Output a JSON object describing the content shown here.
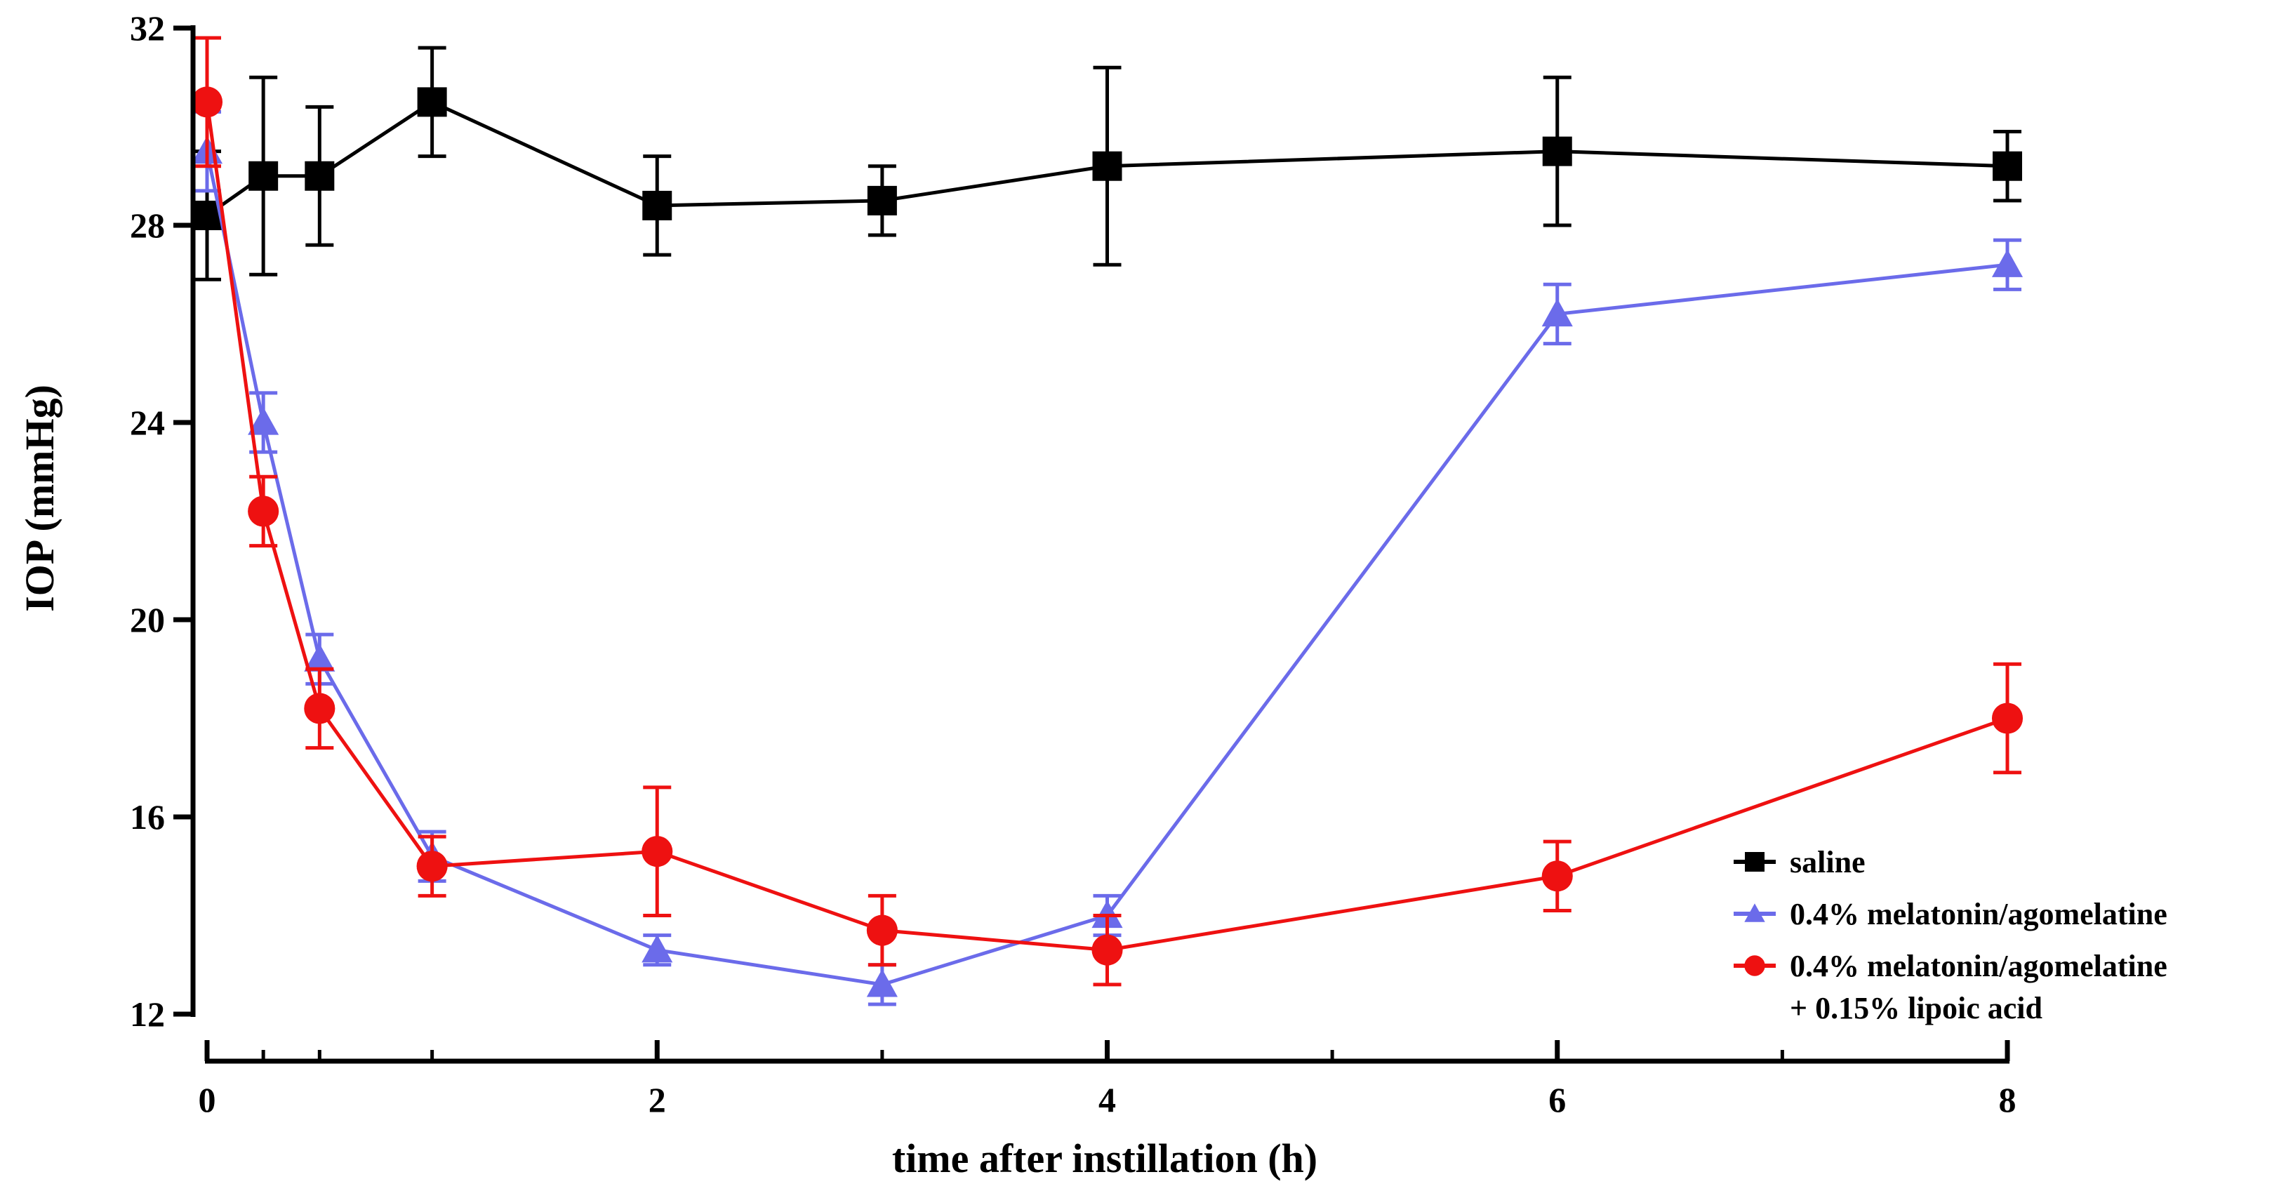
{
  "chart_data": {
    "type": "line",
    "title": "",
    "xlabel": "time after instillation (h)",
    "ylabel": "IOP (mmHg)",
    "xlim": [
      0,
      8
    ],
    "ylim": [
      12,
      32
    ],
    "xticks": [
      0,
      2,
      4,
      6,
      8
    ],
    "yticks": [
      12,
      16,
      20,
      24,
      28,
      32
    ],
    "minor_xticks": [
      0.25,
      0.5,
      1,
      3,
      5,
      7
    ],
    "grid": false,
    "legend_position": "bottom-right",
    "series": [
      {
        "name": "saline",
        "label_lines": [
          "saline"
        ],
        "color": "#000000",
        "marker": "square",
        "x": [
          0,
          0.25,
          0.5,
          1,
          2,
          3,
          4,
          6,
          8
        ],
        "y": [
          28.2,
          29.0,
          29.0,
          30.5,
          28.4,
          28.5,
          29.2,
          29.5,
          29.2
        ],
        "err": [
          1.3,
          2.0,
          1.4,
          1.1,
          1.0,
          0.7,
          2.0,
          1.5,
          0.7
        ]
      },
      {
        "name": "0.4% melatonin/agomelatine",
        "label_lines": [
          "0.4% melatonin/agomelatine"
        ],
        "color": "#6b6bea",
        "marker": "triangle",
        "x": [
          0,
          0.25,
          0.5,
          1,
          2,
          3,
          4,
          6,
          8
        ],
        "y": [
          29.5,
          24.0,
          19.2,
          15.2,
          13.3,
          12.6,
          14.0,
          26.2,
          27.2
        ],
        "err": [
          0.8,
          0.6,
          0.5,
          0.5,
          0.3,
          0.4,
          0.4,
          0.6,
          0.5
        ]
      },
      {
        "name": "0.4% melatonin/agomelatine + 0.15% lipoic acid",
        "label_lines": [
          "0.4% melatonin/agomelatine",
          "+ 0.15% lipoic acid"
        ],
        "color": "#ee1111",
        "marker": "circle",
        "x": [
          0,
          0.25,
          0.5,
          1,
          2,
          3,
          4,
          6,
          8
        ],
        "y": [
          30.5,
          22.2,
          18.2,
          15.0,
          15.3,
          13.7,
          13.3,
          14.8,
          18.0
        ],
        "err": [
          1.3,
          0.7,
          0.8,
          0.6,
          1.3,
          0.7,
          0.7,
          0.7,
          1.1
        ]
      }
    ]
  }
}
